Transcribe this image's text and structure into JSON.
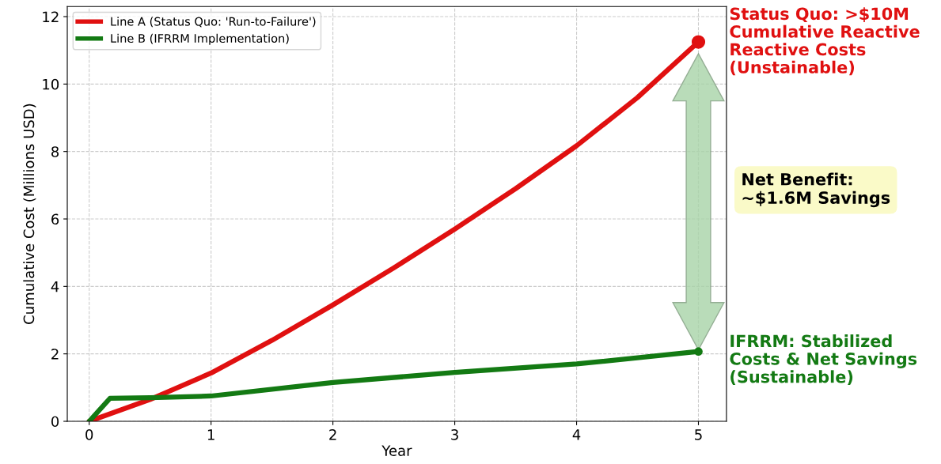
{
  "chart_data": {
    "type": "line",
    "xlabel": "Year",
    "ylabel": "Cumulative Cost (Millions USD)",
    "xlim": [
      -0.18,
      5.23
    ],
    "xticks": [
      0,
      1,
      2,
      3,
      4,
      5
    ],
    "ylim": [
      0,
      12.3
    ],
    "yticks": [
      0,
      2,
      4,
      6,
      8,
      10,
      12
    ],
    "grid": true,
    "legend": "top left",
    "line_style": "solid",
    "series": [
      {
        "name": "Line A (Status Quo: 'Run-to-Failure')",
        "color": "#e01010",
        "x": [
          0,
          0.5,
          1,
          1.5,
          2,
          2.5,
          3,
          3.5,
          4,
          4.5,
          5
        ],
        "values": [
          0,
          0.65,
          1.43,
          2.4,
          3.45,
          4.55,
          5.7,
          6.9,
          8.17,
          9.6,
          11.25
        ]
      },
      {
        "name": "Line B (IFRRM Implementation)",
        "color": "#137a13",
        "x": [
          0,
          0.17,
          0.5,
          1,
          2,
          3,
          4,
          5
        ],
        "values": [
          0,
          0.68,
          0.7,
          0.75,
          1.15,
          1.45,
          1.7,
          2.07
        ]
      },
      {
        "type": "scatter",
        "color": "#e01010",
        "x": [
          5
        ],
        "values": [
          11.25
        ],
        "marker": "circle"
      },
      {
        "type": "scatter",
        "color": "#137a13",
        "x": [
          5
        ],
        "values": [
          2.07
        ],
        "marker": "circle"
      }
    ],
    "annotations": [
      {
        "text": "Status Quo: >$10M\nCumulative Reactive\nReactive Costs\n(Unstainable)",
        "x": 5,
        "y": 11.25
      },
      {
        "text": "IFRRM: Stabilized\nCosts & Net Savings\n(Sustainable)",
        "x": 5,
        "y": 2.07
      },
      "Net Benefit:\n~$1.6M Savings"
    ]
  }
}
